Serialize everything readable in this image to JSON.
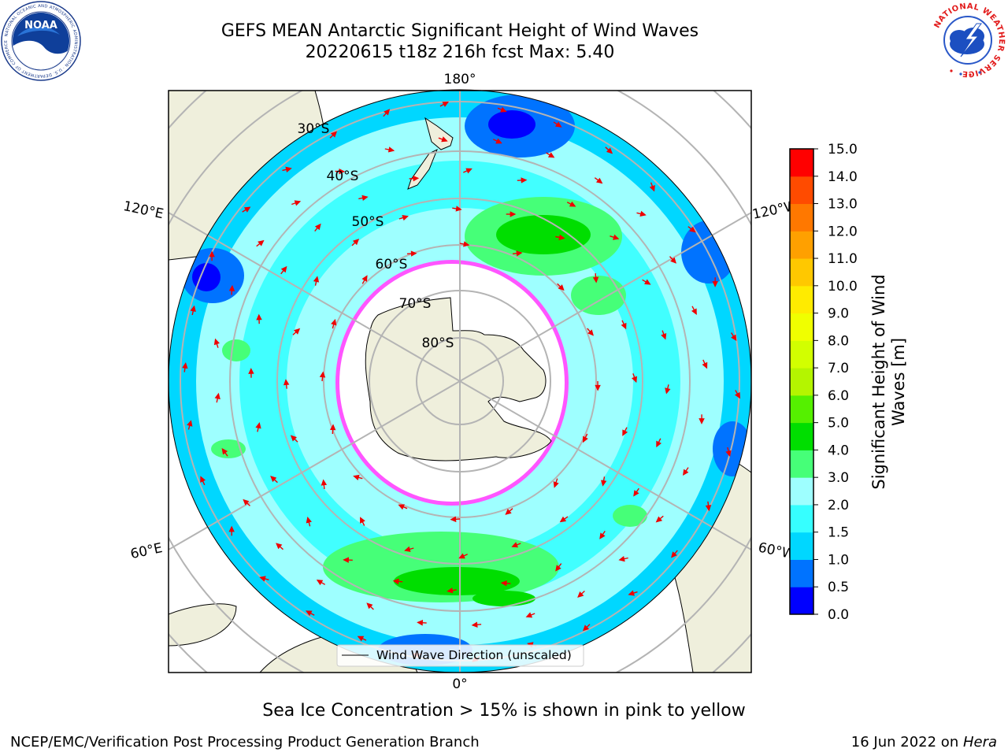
{
  "title": {
    "line1": "GEFS MEAN Antarctic Significant Height of Wind Waves",
    "line2": "20220615 t18z 216h fcst   Max: 5.40"
  },
  "logos": {
    "left": "noaa-logo",
    "left_text": "NOAA",
    "left_ring_text": "NATIONAL OCEANIC AND ATMOSPHERIC ADMINISTRATION · U.S. DEPARTMENT OF COMMERCE",
    "right": "nws-logo",
    "right_ring_text": "NATIONAL WEATHER SERVICE"
  },
  "map": {
    "projection": "south-polar-stereographic",
    "longitude_labels": {
      "top": "180°",
      "bottom": "0°",
      "upper_left": "120°E",
      "upper_right": "120°W",
      "lower_left": "60°E",
      "lower_right": "60°W"
    },
    "latitude_labels": [
      "30°S",
      "40°S",
      "50°S",
      "60°S",
      "70°S",
      "80°S"
    ],
    "legend_entry": "Wind Wave Direction (unscaled)",
    "colors": {
      "land": "#efefdc",
      "sea_ice": "#ffffff",
      "arrows": "#ee0000",
      "grid": "#b4b4b4"
    }
  },
  "colorbar": {
    "label": "Significant Height of Wind Waves [m]",
    "label_line1": "Significant Height of Wind",
    "label_line2": "Waves [m]",
    "ticks": [
      "0.0",
      "0.5",
      "1.0",
      "1.5",
      "2.0",
      "3.0",
      "4.0",
      "5.0",
      "6.0",
      "7.0",
      "8.0",
      "9.0",
      "10.0",
      "11.0",
      "12.0",
      "13.0",
      "14.0",
      "15.0"
    ],
    "colors": [
      "#0000ff",
      "#0073ff",
      "#00d7ff",
      "#36ffff",
      "#9effff",
      "#46ff78",
      "#00de00",
      "#55f000",
      "#b4f500",
      "#d2ff00",
      "#f0ff00",
      "#ffeb00",
      "#ffc800",
      "#ffa000",
      "#ff7800",
      "#ff4b00",
      "#ff0000"
    ]
  },
  "footer": {
    "ice_note": "Sea Ice Concentration > 15% is shown in pink to yellow",
    "credit_left": "NCEP/EMC/Verification Post Processing Product Generation Branch",
    "credit_date": "16 Jun 2022 on ",
    "credit_host": "Hera"
  }
}
